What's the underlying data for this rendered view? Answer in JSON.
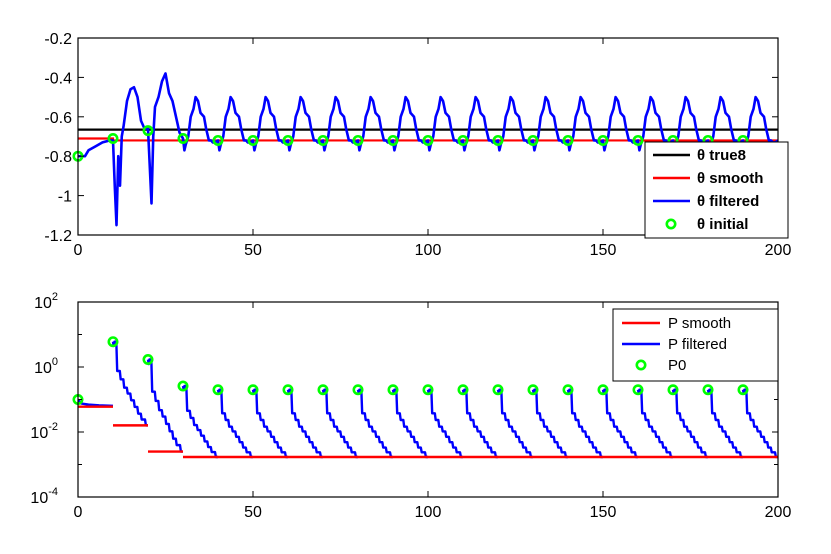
{
  "colors": {
    "true": "#000000",
    "smooth": "#ff0000",
    "filtered": "#0000ff",
    "initial": "#00ff00"
  },
  "chart_data": [
    {
      "type": "line",
      "title": "",
      "xlabel": "",
      "ylabel": "",
      "xlim": [
        0,
        200
      ],
      "ylim": [
        -1.2,
        -0.2
      ],
      "xticks": [
        0,
        50,
        100,
        150,
        200
      ],
      "yticks": [
        -1.2,
        -1,
        -0.8,
        -0.6,
        -0.4,
        -0.2
      ],
      "grid": false,
      "legend_position": "bottom-right",
      "legend": [
        "θ true8",
        "θ smooth",
        "θ filtered",
        "θ initial"
      ],
      "series": [
        {
          "name": "θ true8",
          "style": "line",
          "x": [
            0,
            200
          ],
          "y": [
            -0.665,
            -0.665
          ]
        },
        {
          "name": "θ smooth",
          "style": "step",
          "x": [
            0,
            10,
            10,
            200
          ],
          "y": [
            -0.71,
            -0.71,
            -0.72,
            -0.72
          ]
        },
        {
          "name": "θ filtered",
          "style": "periodic-transient",
          "period": 10,
          "start": 0,
          "end": 200
        },
        {
          "name": "θ initial",
          "style": "markers",
          "x": [
            0,
            10,
            20,
            30,
            40,
            50,
            60,
            70,
            80,
            90,
            100,
            110,
            120,
            130,
            140,
            150,
            160,
            170,
            180,
            190
          ],
          "y": [
            -0.8,
            -0.71,
            -0.67,
            -0.71,
            -0.72,
            -0.72,
            -0.72,
            -0.72,
            -0.72,
            -0.72,
            -0.72,
            -0.72,
            -0.72,
            -0.72,
            -0.72,
            -0.72,
            -0.72,
            -0.72,
            -0.72,
            -0.72
          ]
        }
      ]
    },
    {
      "type": "line",
      "title": "",
      "xlabel": "",
      "ylabel": "",
      "yscale": "log",
      "xlim": [
        0,
        200
      ],
      "ylim": [
        0.0001,
        100
      ],
      "xticks": [
        0,
        50,
        100,
        150,
        200
      ],
      "yticks": [
        {
          "base": "10",
          "exp": "-4",
          "value": 0.0001
        },
        {
          "base": "10",
          "exp": "-2",
          "value": 0.01
        },
        {
          "base": "10",
          "exp": "0",
          "value": 1
        },
        {
          "base": "10",
          "exp": "2",
          "value": 100
        }
      ],
      "grid": false,
      "legend_position": "top-right",
      "legend": [
        "P smooth",
        "P filtered",
        "P0"
      ],
      "series": [
        {
          "name": "P smooth",
          "style": "step",
          "segments": [
            [
              0,
              10,
              0.06
            ],
            [
              10,
              20,
              0.016
            ],
            [
              20,
              30,
              0.0025
            ],
            [
              30,
              200,
              0.0017
            ]
          ]
        },
        {
          "name": "P filtered",
          "style": "decaying-steps",
          "period": 10,
          "start": 0,
          "end": 200
        },
        {
          "name": "P0",
          "style": "markers",
          "x": [
            0,
            10,
            20,
            30,
            40,
            50,
            60,
            70,
            80,
            90,
            100,
            110,
            120,
            130,
            140,
            150,
            160,
            170,
            180,
            190
          ],
          "y": [
            0.1,
            6.0,
            1.7,
            0.26,
            0.2,
            0.2,
            0.2,
            0.2,
            0.2,
            0.2,
            0.2,
            0.2,
            0.2,
            0.2,
            0.2,
            0.2,
            0.2,
            0.2,
            0.2,
            0.2
          ]
        }
      ]
    }
  ]
}
